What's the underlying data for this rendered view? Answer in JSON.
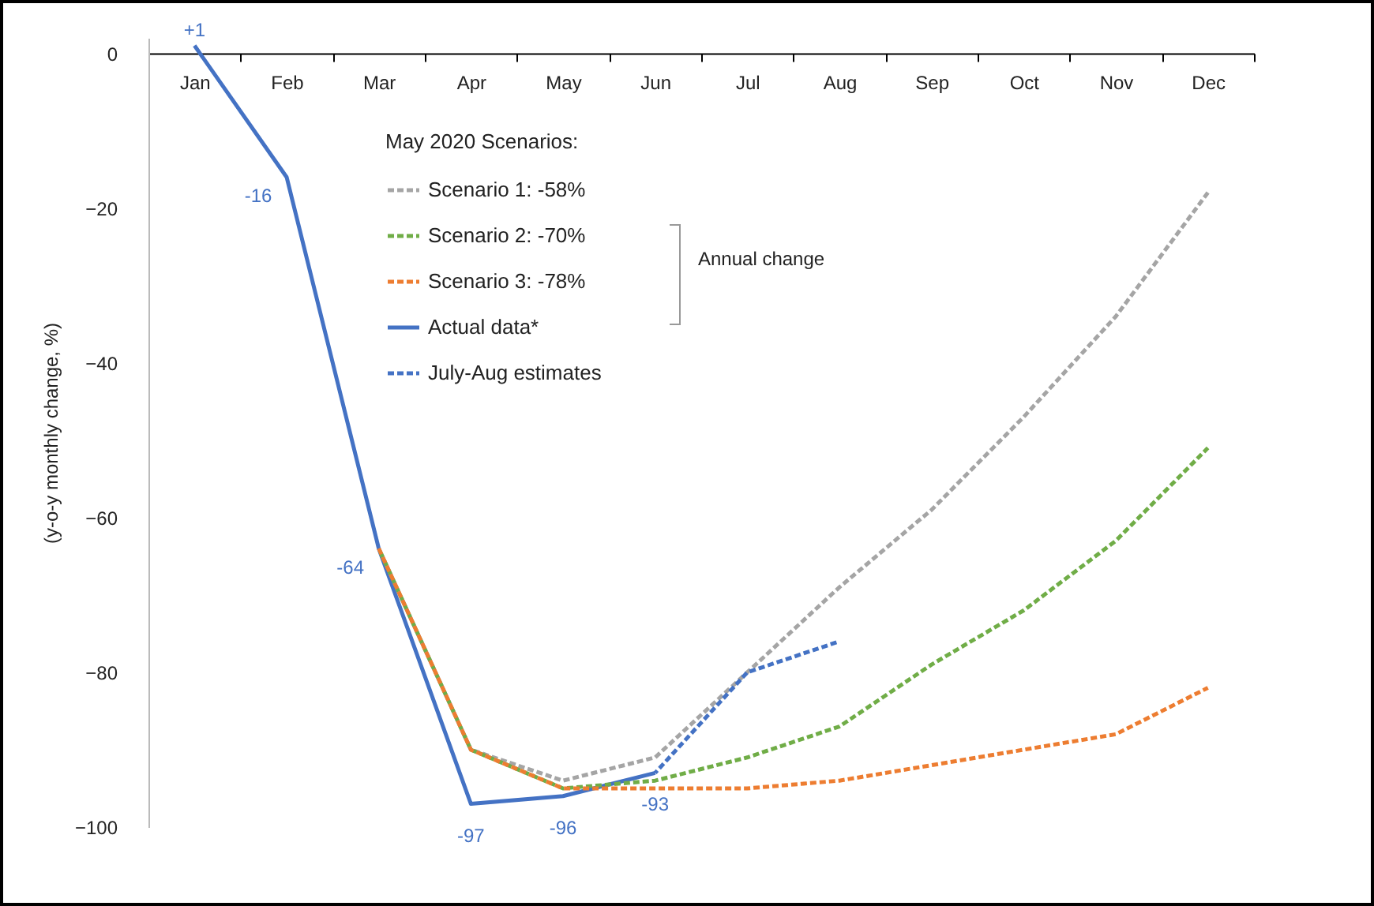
{
  "chart_data": {
    "type": "line",
    "ylabel": "(y-o-y monthly change, %)",
    "legend_title": "May 2020 Scenarios:",
    "categories": [
      "Jan",
      "Feb",
      "Mar",
      "Apr",
      "May",
      "Jun",
      "Jul",
      "Aug",
      "Sep",
      "Oct",
      "Nov",
      "Dec"
    ],
    "series": [
      {
        "name": "Scenario 1: -58%",
        "color": "#a5a5a5",
        "line_style": "dashed",
        "values": [
          null,
          null,
          -64,
          -90,
          -94,
          -91,
          -80,
          -69,
          -59,
          -47,
          -34,
          -18
        ]
      },
      {
        "name": "Scenario 2: -70%",
        "color": "#70ad47",
        "line_style": "dashed",
        "values": [
          null,
          null,
          -64,
          -90,
          -95,
          -94,
          -91,
          -87,
          -79,
          -72,
          -63,
          -51
        ]
      },
      {
        "name": "Scenario 3: -78%",
        "color": "#ed7d31",
        "line_style": "dashed",
        "values": [
          null,
          null,
          -64,
          -90,
          -95,
          -95,
          -95,
          -94,
          -92,
          -90,
          -88,
          -82
        ]
      },
      {
        "name": "Actual data*",
        "color": "#4472c4",
        "line_style": "solid",
        "values": [
          1,
          -16,
          -64,
          -97,
          -96,
          -93,
          null,
          null,
          null,
          null,
          null,
          null
        ],
        "value_labels": [
          "+1",
          "-16",
          "-64",
          "-97",
          "-96",
          "-93",
          null,
          null,
          null,
          null,
          null,
          null
        ]
      },
      {
        "name": "July-Aug estimates",
        "color": "#4472c4",
        "line_style": "dashed",
        "values": [
          null,
          null,
          null,
          null,
          null,
          -93,
          -80,
          -76,
          null,
          null,
          null,
          null
        ]
      }
    ],
    "annotations": [
      "Annual change"
    ],
    "ylim": [
      -100,
      2
    ],
    "yticks": [
      0,
      -20,
      -40,
      -60,
      -80,
      -100
    ],
    "grid": false,
    "legend": "top",
    "marker": "none"
  }
}
